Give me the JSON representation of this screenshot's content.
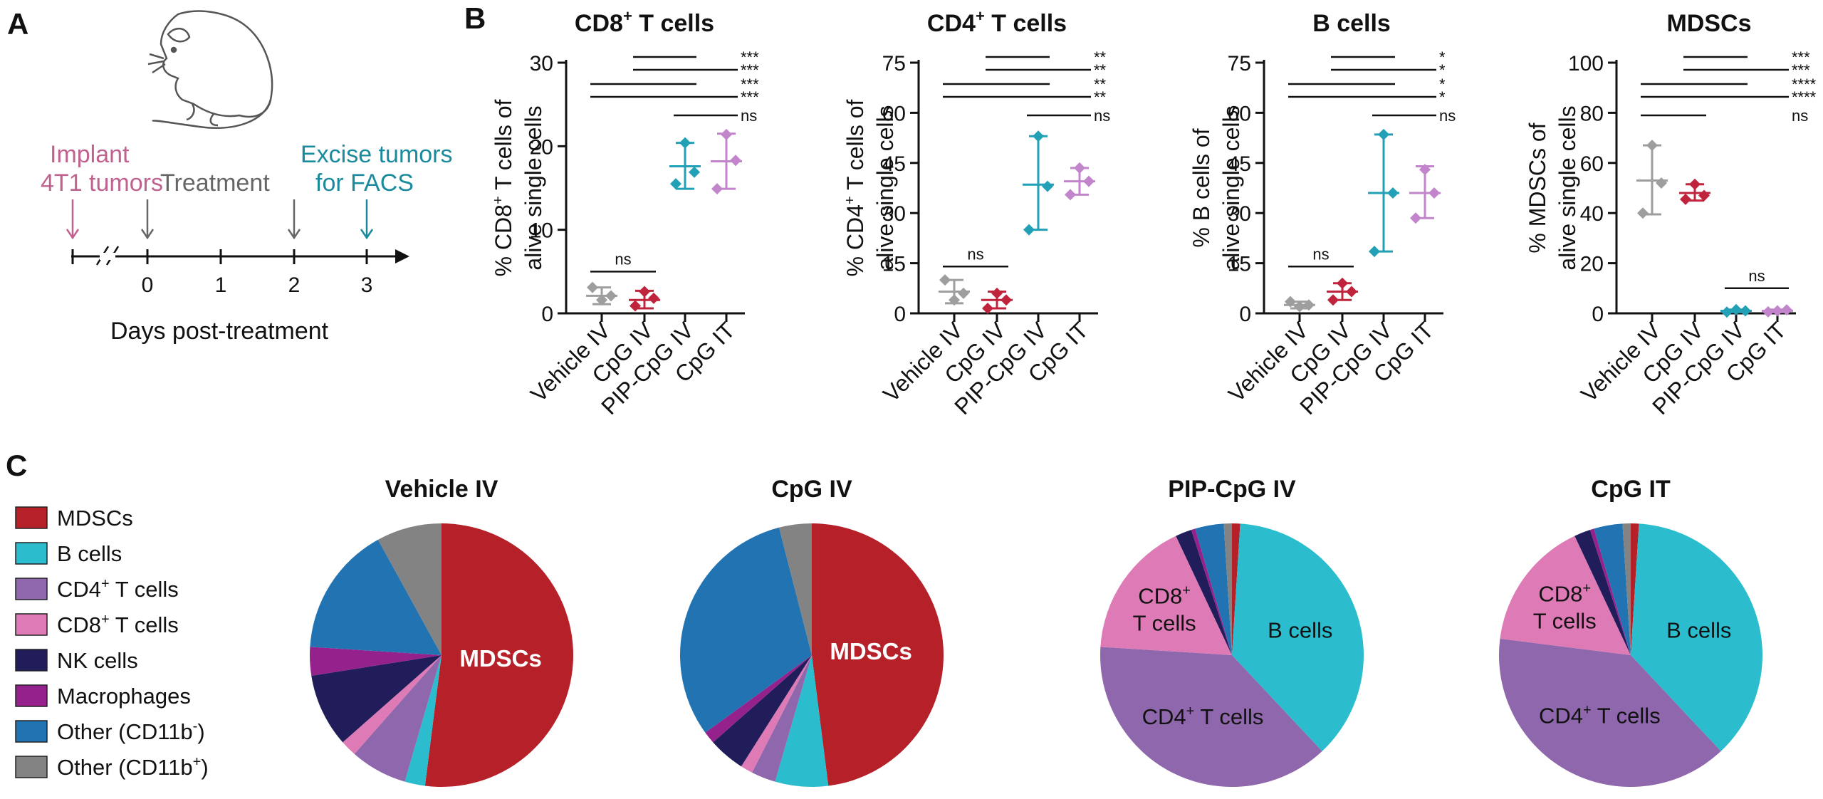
{
  "colors": {
    "vehicle": "#9e9e9e",
    "cpg_iv": "#c0243c",
    "pip": "#21a0b6",
    "cpg_it": "#c285cc",
    "mdsc": "#b52029",
    "bcells": "#2bbdcd",
    "cd4": "#8f67ad",
    "cd8": "#de7ab6",
    "nk": "#211d5a",
    "macro": "#95228c",
    "other_neg": "#2173b2",
    "other_pos": "#838383",
    "pink_text": "#c0628f",
    "teal_text": "#1a8b9c",
    "gray_text": "#666666"
  },
  "panel_labels": {
    "a": "A",
    "b": "B",
    "c": "C"
  },
  "timeline": {
    "implant": [
      "Implant",
      "4T1 tumors"
    ],
    "treatment": "Treatment",
    "excise": [
      "Excise tumors",
      "for FACS"
    ],
    "ticks": [
      "0",
      "1",
      "2",
      "3"
    ],
    "xlabel": "Days post-treatment"
  },
  "chart_data": [
    {
      "type": "scatter",
      "title": "CD8",
      "title_sup": "+",
      "title_end": "T cells",
      "ylabel_l1_pre": "% CD8",
      "ylabel_sup": "+",
      "ylabel_l1_post": "T cells of",
      "ylabel_l2": "alive single cells",
      "ylim": [
        0,
        30
      ],
      "yticks": [
        "0",
        "10",
        "20",
        "30"
      ],
      "categories": [
        "Vehicle IV",
        "CpG IV",
        "PIP-CpG IV",
        "CpG IT"
      ],
      "series": [
        {
          "name": "Vehicle IV",
          "mean": 2.1,
          "err": [
            1.1,
            3.1
          ],
          "points": [
            1.6,
            3.1,
            2.1
          ]
        },
        {
          "name": "CpG IV",
          "mean": 1.6,
          "err": [
            0.6,
            2.7
          ],
          "points": [
            2.6,
            0.9,
            1.8
          ]
        },
        {
          "name": "PIP-CpG IV",
          "mean": 17.6,
          "err": [
            14.9,
            20.4
          ],
          "points": [
            20.4,
            15.5,
            16.9
          ]
        },
        {
          "name": "CpG IT",
          "mean": 18.2,
          "err": [
            14.9,
            21.5
          ],
          "points": [
            21.4,
            14.9,
            18.3
          ]
        }
      ],
      "comparisons": [
        {
          "from": 1,
          "to": 2,
          "label": "***"
        },
        {
          "from": 1,
          "to": 3,
          "label": "***"
        },
        {
          "from": 0,
          "to": 2,
          "label": "***"
        },
        {
          "from": 0,
          "to": 3,
          "label": "***"
        },
        {
          "from": 2,
          "to": 3,
          "label": "ns"
        },
        {
          "from": 0,
          "to": 1,
          "label": "ns",
          "below": 5.0
        }
      ]
    },
    {
      "type": "scatter",
      "title": "CD4",
      "title_sup": "+",
      "title_end": "T cells",
      "ylabel_l1_pre": "% CD4",
      "ylabel_sup": "+",
      "ylabel_l1_post": "T cells of",
      "ylabel_l2": "alive single cells",
      "ylim": [
        0,
        75
      ],
      "yticks": [
        "0",
        "15",
        "30",
        "45",
        "60",
        "75"
      ],
      "categories": [
        "Vehicle IV",
        "CpG IV",
        "PIP-CpG IV",
        "CpG IT"
      ],
      "series": [
        {
          "name": "Vehicle IV",
          "mean": 6.5,
          "err": [
            3.0,
            10.0
          ],
          "points": [
            4.0,
            10.0,
            6.0
          ]
        },
        {
          "name": "CpG IV",
          "mean": 4.0,
          "err": [
            1.5,
            6.5
          ],
          "points": [
            6.0,
            1.5,
            4.0
          ]
        },
        {
          "name": "PIP-CpG IV",
          "mean": 38.5,
          "err": [
            25.0,
            53.0
          ],
          "points": [
            53.0,
            25.0,
            38.0
          ]
        },
        {
          "name": "CpG IT",
          "mean": 39.5,
          "err": [
            35.5,
            43.5
          ],
          "points": [
            43.5,
            35.5,
            39.5
          ]
        }
      ],
      "comparisons": [
        {
          "from": 1,
          "to": 2,
          "label": "**"
        },
        {
          "from": 1,
          "to": 3,
          "label": "**"
        },
        {
          "from": 0,
          "to": 2,
          "label": "**"
        },
        {
          "from": 0,
          "to": 3,
          "label": "**"
        },
        {
          "from": 2,
          "to": 3,
          "label": "ns"
        },
        {
          "from": 0,
          "to": 1,
          "label": "ns",
          "below": 14.0
        }
      ]
    },
    {
      "type": "scatter",
      "title": "B cells",
      "ylabel_l1_pre": "% B cells of",
      "ylabel_l2": "alive single cells",
      "ylim": [
        0,
        75
      ],
      "yticks": [
        "0",
        "15",
        "30",
        "45",
        "60",
        "75"
      ],
      "categories": [
        "Vehicle IV",
        "CpG IV",
        "PIP-CpG IV",
        "CpG IT"
      ],
      "series": [
        {
          "name": "Vehicle IV",
          "mean": 2.5,
          "err": [
            1.5,
            3.5
          ],
          "points": [
            2.0,
            3.5,
            2.5
          ]
        },
        {
          "name": "CpG IV",
          "mean": 6.5,
          "err": [
            4.0,
            9.0
          ],
          "points": [
            9.0,
            4.0,
            6.5
          ]
        },
        {
          "name": "PIP-CpG IV",
          "mean": 36.0,
          "err": [
            18.5,
            53.5
          ],
          "points": [
            53.5,
            18.5,
            36.0
          ]
        },
        {
          "name": "CpG IT",
          "mean": 36.0,
          "err": [
            28.5,
            44.0
          ],
          "points": [
            43.0,
            28.5,
            36.0
          ]
        }
      ],
      "comparisons": [
        {
          "from": 1,
          "to": 2,
          "label": "*"
        },
        {
          "from": 1,
          "to": 3,
          "label": "*"
        },
        {
          "from": 0,
          "to": 2,
          "label": "*"
        },
        {
          "from": 0,
          "to": 3,
          "label": "*"
        },
        {
          "from": 2,
          "to": 3,
          "label": "ns"
        },
        {
          "from": 0,
          "to": 1,
          "label": "ns",
          "below": 14.0
        }
      ]
    },
    {
      "type": "scatter",
      "title": "MDSCs",
      "ylabel_l1_pre": "% MDSCs of",
      "ylabel_l2": "alive single cells",
      "ylim": [
        0,
        100
      ],
      "yticks": [
        "0",
        "20",
        "40",
        "60",
        "80",
        "100"
      ],
      "categories": [
        "Vehicle IV",
        "CpG IV",
        "PIP-CpG IV",
        "CpG IT"
      ],
      "series": [
        {
          "name": "Vehicle IV",
          "mean": 53.0,
          "err": [
            39.5,
            67.0
          ],
          "points": [
            67.0,
            40.0,
            52.0
          ]
        },
        {
          "name": "CpG IV",
          "mean": 48.0,
          "err": [
            45.0,
            51.5
          ],
          "points": [
            51.5,
            45.5,
            47.0
          ]
        },
        {
          "name": "PIP-CpG IV",
          "mean": 1.0,
          "err": [
            0.5,
            1.5
          ],
          "points": [
            1.5,
            0.5,
            1.0
          ]
        },
        {
          "name": "CpG IT",
          "mean": 1.0,
          "err": [
            0.5,
            1.5
          ],
          "points": [
            1.0,
            0.6,
            1.4
          ]
        }
      ],
      "comparisons": [
        {
          "from": 1,
          "to": 2,
          "label": "***"
        },
        {
          "from": 1,
          "to": 3,
          "label": "***"
        },
        {
          "from": 0,
          "to": 2,
          "label": "****"
        },
        {
          "from": 0,
          "to": 3,
          "label": "****"
        },
        {
          "from": 0,
          "to": 1,
          "label": "ns"
        },
        {
          "from": 2,
          "to": 3,
          "label": "ns",
          "below": 10.0
        }
      ]
    },
    {
      "type": "pie",
      "title": "Vehicle IV",
      "slices": [
        {
          "name": "MDSCs",
          "value": 52.0,
          "color": "mdsc"
        },
        {
          "name": "B cells",
          "value": 2.5,
          "color": "bcells"
        },
        {
          "name": "CD4+ T cells",
          "value": 7.0,
          "color": "cd4"
        },
        {
          "name": "CD8+ T cells",
          "value": 2.0,
          "color": "cd8"
        },
        {
          "name": "NK cells",
          "value": 9.0,
          "color": "nk"
        },
        {
          "name": "Macrophages",
          "value": 3.5,
          "color": "macro"
        },
        {
          "name": "Other (CD11b-)",
          "value": 16.0,
          "color": "other_neg"
        },
        {
          "name": "Other (CD11b+)",
          "value": 8.0,
          "color": "other_pos"
        }
      ]
    },
    {
      "type": "pie",
      "title": "CpG  IV",
      "slices": [
        {
          "name": "MDSCs",
          "value": 48.0,
          "color": "mdsc"
        },
        {
          "name": "B cells",
          "value": 6.5,
          "color": "bcells"
        },
        {
          "name": "CD4+ T cells",
          "value": 3.0,
          "color": "cd4"
        },
        {
          "name": "CD8+ T cells",
          "value": 1.5,
          "color": "cd8"
        },
        {
          "name": "NK cells",
          "value": 4.5,
          "color": "nk"
        },
        {
          "name": "Macrophages",
          "value": 1.5,
          "color": "macro"
        },
        {
          "name": "Other (CD11b-)",
          "value": 31.0,
          "color": "other_neg"
        },
        {
          "name": "Other (CD11b+)",
          "value": 4.0,
          "color": "other_pos"
        }
      ]
    },
    {
      "type": "pie",
      "title": "PIP-CpG  IV",
      "slices": [
        {
          "name": "MDSCs",
          "value": 1.0,
          "color": "mdsc"
        },
        {
          "name": "B cells",
          "value": 37.0,
          "color": "bcells"
        },
        {
          "name": "CD4+ T cells",
          "value": 38.0,
          "color": "cd4"
        },
        {
          "name": "CD8+ T cells",
          "value": 17.0,
          "color": "cd8"
        },
        {
          "name": "NK cells",
          "value": 2.0,
          "color": "nk"
        },
        {
          "name": "Macrophages",
          "value": 0.5,
          "color": "macro"
        },
        {
          "name": "Other (CD11b-)",
          "value": 3.5,
          "color": "other_neg"
        },
        {
          "name": "Other (CD11b+)",
          "value": 1.0,
          "color": "other_pos"
        }
      ]
    },
    {
      "type": "pie",
      "title": "CpG IT",
      "slices": [
        {
          "name": "MDSCs",
          "value": 1.0,
          "color": "mdsc"
        },
        {
          "name": "B cells",
          "value": 37.0,
          "color": "bcells"
        },
        {
          "name": "CD4+ T cells",
          "value": 39.0,
          "color": "cd4"
        },
        {
          "name": "CD8+ T cells",
          "value": 16.0,
          "color": "cd8"
        },
        {
          "name": "NK cells",
          "value": 2.0,
          "color": "nk"
        },
        {
          "name": "Macrophages",
          "value": 0.5,
          "color": "macro"
        },
        {
          "name": "Other (CD11b-)",
          "value": 3.5,
          "color": "other_neg"
        },
        {
          "name": "Other (CD11b+)",
          "value": 1.0,
          "color": "other_pos"
        }
      ]
    }
  ],
  "legend": [
    {
      "label": "MDSCs",
      "color": "mdsc"
    },
    {
      "label": "B cells",
      "color": "bcells"
    },
    {
      "label": "CD4",
      "sup": "+",
      "label_end": "T cells",
      "color": "cd4"
    },
    {
      "label": "CD8",
      "sup": "+",
      "label_end": "T cells",
      "color": "cd8"
    },
    {
      "label": "NK cells",
      "color": "nk"
    },
    {
      "label": "Macrophages",
      "color": "macro"
    },
    {
      "label": "Other (CD11b",
      "sup": "-",
      "label_end": ")",
      "color": "other_neg"
    },
    {
      "label": "Other (CD11b",
      "sup": "+",
      "label_end": ")",
      "color": "other_pos"
    }
  ],
  "pie_labels": {
    "mdsc": "MDSCs",
    "b": "B cells",
    "cd4_pre": "CD4",
    "cd4_sup": "+",
    "cd4_post": "T cells",
    "cd8_pre": "CD8",
    "cd8_sup": "+",
    "cd8_post": "T cells"
  }
}
